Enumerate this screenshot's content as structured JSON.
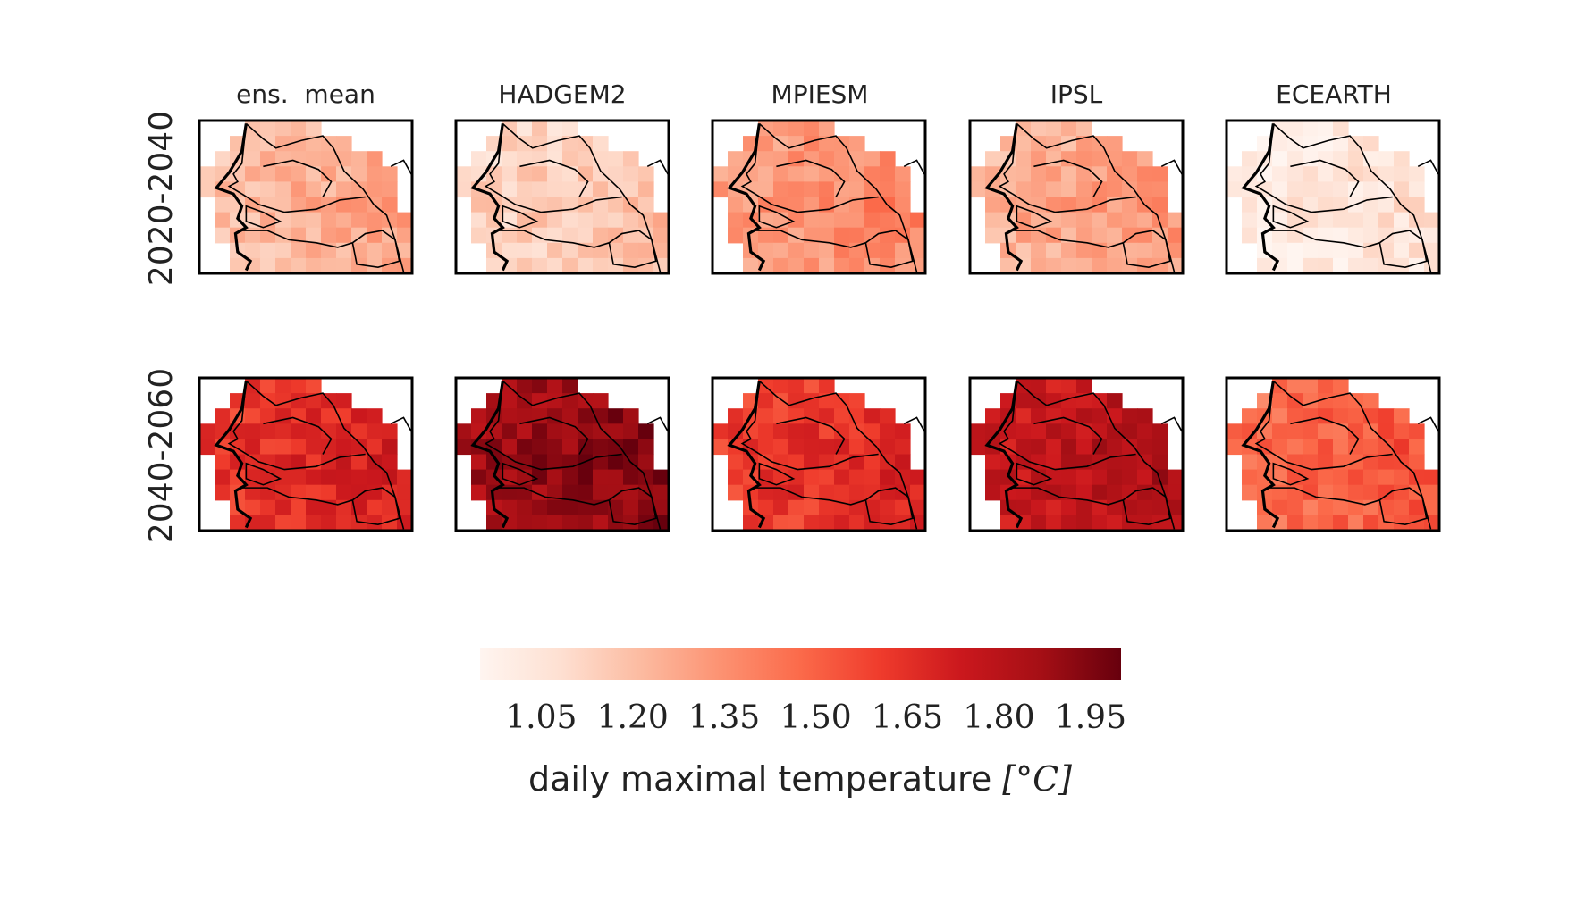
{
  "chart_data": {
    "type": "heatmap",
    "columns": [
      {
        "title": "ens.  mean",
        "intensity_2020_2040": 0.3,
        "intensity_2040_2060": 0.7
      },
      {
        "title": "HADGEM2",
        "intensity_2020_2040": 0.22,
        "intensity_2040_2060": 0.93
      },
      {
        "title": "MPIESM",
        "intensity_2020_2040": 0.4,
        "intensity_2040_2060": 0.68
      },
      {
        "title": "IPSL",
        "intensity_2020_2040": 0.34,
        "intensity_2040_2060": 0.82
      },
      {
        "title": "ECEARTH",
        "intensity_2020_2040": 0.1,
        "intensity_2040_2060": 0.55
      }
    ],
    "rows": [
      {
        "label": "2020-2040"
      },
      {
        "label": "2040-2060"
      }
    ],
    "colorbar": {
      "colormap": "Reds",
      "range": [
        0.95,
        2.0
      ],
      "ticks": [
        "1.05",
        "1.20",
        "1.35",
        "1.50",
        "1.65",
        "1.80",
        "1.95"
      ],
      "label_text": "daily maximal temperature ",
      "label_unit": "[°C]"
    }
  }
}
